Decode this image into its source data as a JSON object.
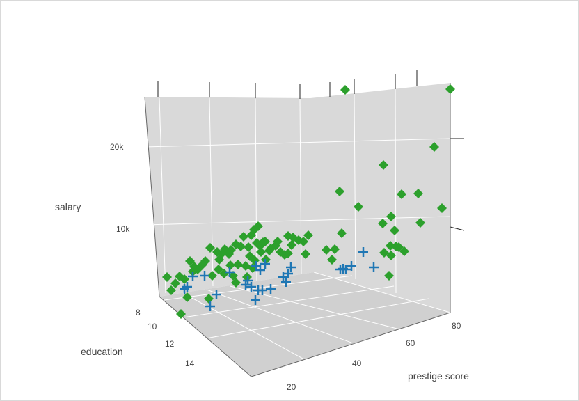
{
  "chart_data": {
    "type": "scatter3d",
    "axes": {
      "x": {
        "label": "prestige score",
        "ticks": [
          "20",
          "40",
          "60",
          "80"
        ]
      },
      "y": {
        "label": "education",
        "ticks": [
          "8",
          "10",
          "12",
          "14"
        ]
      },
      "z": {
        "label": "salary",
        "ticks": [
          "10k",
          "20k"
        ]
      }
    },
    "grid": true,
    "colors": {
      "series_a": "#2ca02c",
      "series_b": "#1f77b4",
      "scene": "#d9d9d9",
      "grid": "#ffffff"
    },
    "series": [
      {
        "marker": "diamond",
        "color": "#2ca02c",
        "points": [
          [
            495,
            128
          ],
          [
            646,
            127
          ],
          [
            623,
            210
          ],
          [
            550,
            236
          ],
          [
            487,
            274
          ],
          [
            576,
            278
          ],
          [
            600,
            277
          ],
          [
            514,
            296
          ],
          [
            634,
            298
          ],
          [
            561,
            310
          ],
          [
            549,
            320
          ],
          [
            603,
            319
          ],
          [
            566,
            330
          ],
          [
            490,
            334
          ],
          [
            560,
            352
          ],
          [
            568,
            353
          ],
          [
            572,
            354
          ],
          [
            551,
            362
          ],
          [
            580,
            360
          ],
          [
            561,
            366
          ],
          [
            558,
            395
          ],
          [
            442,
            337
          ],
          [
            435,
            346
          ],
          [
            438,
            364
          ],
          [
            420,
            340
          ],
          [
            413,
            338
          ],
          [
            418,
            351
          ],
          [
            413,
            363
          ],
          [
            398,
            346
          ],
          [
            402,
            361
          ],
          [
            395,
            352
          ],
          [
            468,
            358
          ],
          [
            480,
            357
          ],
          [
            476,
            372
          ],
          [
            370,
            324
          ],
          [
            364,
            329
          ],
          [
            360,
            337
          ],
          [
            356,
            354
          ],
          [
            349,
            339
          ],
          [
            345,
            353
          ],
          [
            338,
            350
          ],
          [
            331,
            358
          ],
          [
            328,
            364
          ],
          [
            322,
            357
          ],
          [
            317,
            364
          ],
          [
            311,
            361
          ],
          [
            314,
            372
          ],
          [
            301,
            355
          ],
          [
            294,
            374
          ],
          [
            289,
            380
          ],
          [
            283,
            386
          ],
          [
            278,
            382
          ],
          [
            272,
            374
          ],
          [
            276,
            389
          ],
          [
            264,
            400
          ],
          [
            257,
            396
          ],
          [
            239,
            397
          ],
          [
            251,
            406
          ],
          [
            245,
            416
          ],
          [
            268,
            426
          ],
          [
            299,
            428
          ],
          [
            259,
            450
          ],
          [
            368,
            348
          ],
          [
            377,
            347
          ],
          [
            374,
            361
          ],
          [
            358,
            367
          ],
          [
            365,
            373
          ],
          [
            352,
            381
          ],
          [
            341,
            379
          ],
          [
            330,
            380
          ],
          [
            334,
            395
          ],
          [
            321,
            392
          ],
          [
            313,
            386
          ],
          [
            304,
            395
          ],
          [
            338,
            405
          ],
          [
            354,
            397
          ],
          [
            362,
            384
          ],
          [
            386,
            359
          ],
          [
            381,
            372
          ],
          [
            373,
            352
          ],
          [
            380,
            346
          ],
          [
            388,
            356
          ],
          [
            428,
            344
          ],
          [
            408,
            365
          ]
        ]
      },
      {
        "marker": "cross",
        "color": "#1f77b4",
        "points": [
          [
            521,
            361
          ],
          [
            536,
            383
          ],
          [
            504,
            381
          ],
          [
            496,
            386
          ],
          [
            488,
            386
          ],
          [
            492,
            385
          ],
          [
            380,
            378
          ],
          [
            417,
            383
          ],
          [
            413,
            392
          ],
          [
            406,
            397
          ],
          [
            410,
            404
          ],
          [
            373,
            387
          ],
          [
            367,
            381
          ],
          [
            355,
            402
          ],
          [
            352,
            408
          ],
          [
            360,
            411
          ],
          [
            370,
            416
          ],
          [
            376,
            416
          ],
          [
            388,
            414
          ],
          [
            366,
            430
          ],
          [
            329,
            390
          ],
          [
            293,
            395
          ],
          [
            276,
            396
          ],
          [
            268,
            411
          ],
          [
            264,
            414
          ],
          [
            310,
            422
          ],
          [
            301,
            439
          ]
        ]
      }
    ]
  }
}
